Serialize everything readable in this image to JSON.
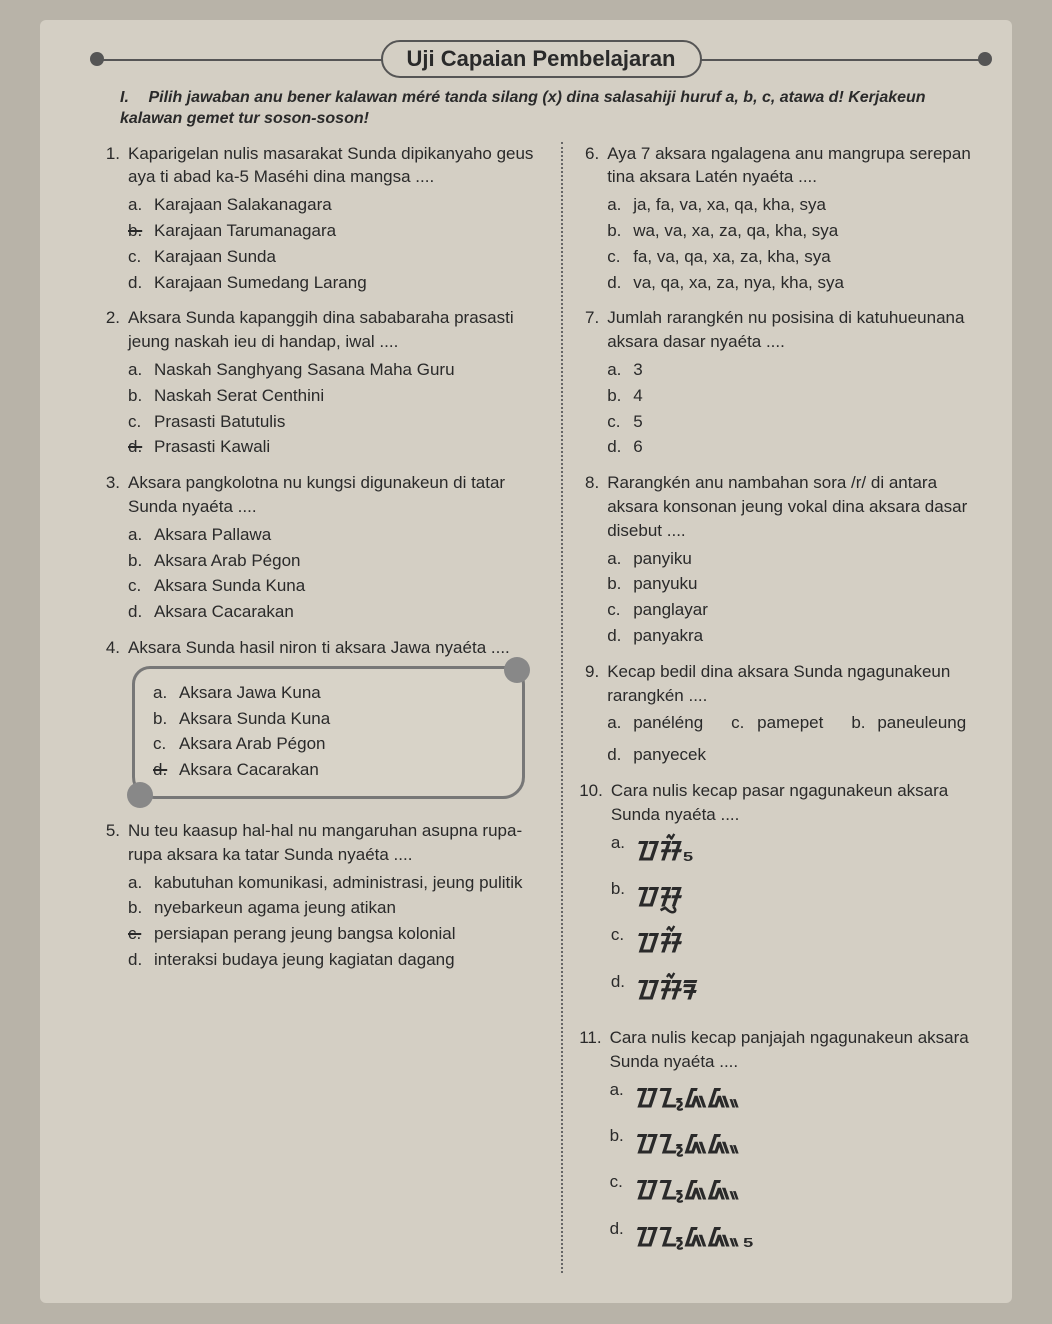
{
  "header": {
    "title": "Uji Capaian Pembelajaran"
  },
  "instruction": {
    "num": "I.",
    "text": "Pilih jawaban anu bener kalawan méré tanda silang (x) dina salasahiji huruf a, b, c, atawa d! Kerjakeun kalawan gemet tur soson-soson!"
  },
  "left": [
    {
      "num": "1.",
      "stem": "Kaparigelan nulis masarakat Sunda dipikanyaho geus aya ti abad ka-5 Maséhi dina mangsa ....",
      "opts": [
        {
          "l": "a.",
          "t": "Karajaan Salakanagara"
        },
        {
          "l": "b.",
          "t": "Karajaan Tarumanagara",
          "strike": true
        },
        {
          "l": "c.",
          "t": "Karajaan Sunda"
        },
        {
          "l": "d.",
          "t": "Karajaan Sumedang Larang"
        }
      ]
    },
    {
      "num": "2.",
      "stem": "Aksara Sunda kapanggih dina sababaraha prasasti jeung naskah ieu di handap, iwal ....",
      "opts": [
        {
          "l": "a.",
          "t": "Naskah Sanghyang Sasana Maha Guru"
        },
        {
          "l": "b.",
          "t": "Naskah Serat Centhini"
        },
        {
          "l": "c.",
          "t": "Prasasti Batutulis"
        },
        {
          "l": "d.",
          "t": "Prasasti Kawali",
          "strike": true
        }
      ]
    },
    {
      "num": "3.",
      "stem": "Aksara pangkolotna nu kungsi digunakeun di tatar Sunda nyaéta ....",
      "opts": [
        {
          "l": "a.",
          "t": "Aksara Pallawa"
        },
        {
          "l": "b.",
          "t": "Aksara Arab Pégon"
        },
        {
          "l": "c.",
          "t": "Aksara Sunda Kuna"
        },
        {
          "l": "d.",
          "t": "Aksara Cacarakan"
        }
      ]
    },
    {
      "num": "4.",
      "stem": "Aksara Sunda hasil niron ti aksara Jawa nyaéta ....",
      "boxopts": [
        {
          "l": "a.",
          "t": "Aksara Jawa Kuna"
        },
        {
          "l": "b.",
          "t": "Aksara Sunda Kuna"
        },
        {
          "l": "c.",
          "t": "Aksara Arab Pégon"
        },
        {
          "l": "d.",
          "t": "Aksara Cacarakan",
          "strike": true
        }
      ]
    },
    {
      "num": "5.",
      "stem": "Nu teu kaasup hal-hal nu mangaruhan asupna rupa-rupa aksara ka tatar Sunda nyaéta ....",
      "opts": [
        {
          "l": "a.",
          "t": "kabutuhan komunikasi, administrasi, jeung pulitik"
        },
        {
          "l": "b.",
          "t": "nyebarkeun agama jeung atikan"
        },
        {
          "l": "c.",
          "t": "persiapan perang jeung bangsa kolonial",
          "strike": true
        },
        {
          "l": "d.",
          "t": "interaksi budaya jeung kagiatan dagang"
        }
      ]
    }
  ],
  "right": [
    {
      "num": "6.",
      "stem": "Aya 7 aksara ngalagena anu mangrupa serepan tina aksara Latén nyaéta ....",
      "opts": [
        {
          "l": "a.",
          "t": "ja, fa, va, xa, qa, kha, sya"
        },
        {
          "l": "b.",
          "t": "wa, va, xa, za, qa, kha, sya"
        },
        {
          "l": "c.",
          "t": "fa, va, qa, xa, za, kha, sya"
        },
        {
          "l": "d.",
          "t": "va, qa, xa, za, nya, kha, sya"
        }
      ]
    },
    {
      "num": "7.",
      "stem": "Jumlah rarangkén nu posisina di katuhueunana aksara dasar nyaéta ....",
      "opts": [
        {
          "l": "a.",
          "t": "3"
        },
        {
          "l": "b.",
          "t": "4"
        },
        {
          "l": "c.",
          "t": "5"
        },
        {
          "l": "d.",
          "t": "6"
        }
      ]
    },
    {
      "num": "8.",
      "stem": "Rarangkén anu nambahan sora /r/ di antara aksara konsonan jeung vokal dina aksara dasar disebut ....",
      "opts": [
        {
          "l": "a.",
          "t": "panyiku"
        },
        {
          "l": "b.",
          "t": "panyuku"
        },
        {
          "l": "c.",
          "t": "panglayar"
        },
        {
          "l": "d.",
          "t": "panyakra"
        }
      ]
    },
    {
      "num": "9.",
      "stem": "Kecap bedil dina aksara Sunda ngagunakeun rarangkén ....",
      "inline": true,
      "opts": [
        {
          "l": "a.",
          "t": "panéléng"
        },
        {
          "l": "c.",
          "t": "pamepet"
        },
        {
          "l": "b.",
          "t": "paneuleung"
        },
        {
          "l": "d.",
          "t": "panyecek"
        }
      ]
    },
    {
      "num": "10.",
      "stem": "Cara nulis kecap pasar ngagunakeun aksara Sunda nyaéta ....",
      "sund_opts": [
        {
          "l": "a.",
          "s": "ᮕᮞᮁ₅"
        },
        {
          "l": "b.",
          "s": "ᮕᮞᮢ"
        },
        {
          "l": "c.",
          "s": "ᮕᮞᮁ"
        },
        {
          "l": "d.",
          "s": "ᮕᮞᮁᮛ"
        }
      ]
    },
    {
      "num": "11.",
      "stem": "Cara nulis kecap panjajah ngagunakeun aksara Sunda nyaéta ....",
      "sund_opts": [
        {
          "l": "a.",
          "s": "ᮕᮔ᮪ᮏᮏᮂ"
        },
        {
          "l": "b.",
          "s": "ᮕᮔ᮪ᮏᮏᮂ"
        },
        {
          "l": "c.",
          "s": "ᮕᮔ᮪ᮏᮏᮂ"
        },
        {
          "l": "d.",
          "s": "ᮕᮔ᮪ᮏᮏᮂ₅"
        }
      ]
    }
  ]
}
